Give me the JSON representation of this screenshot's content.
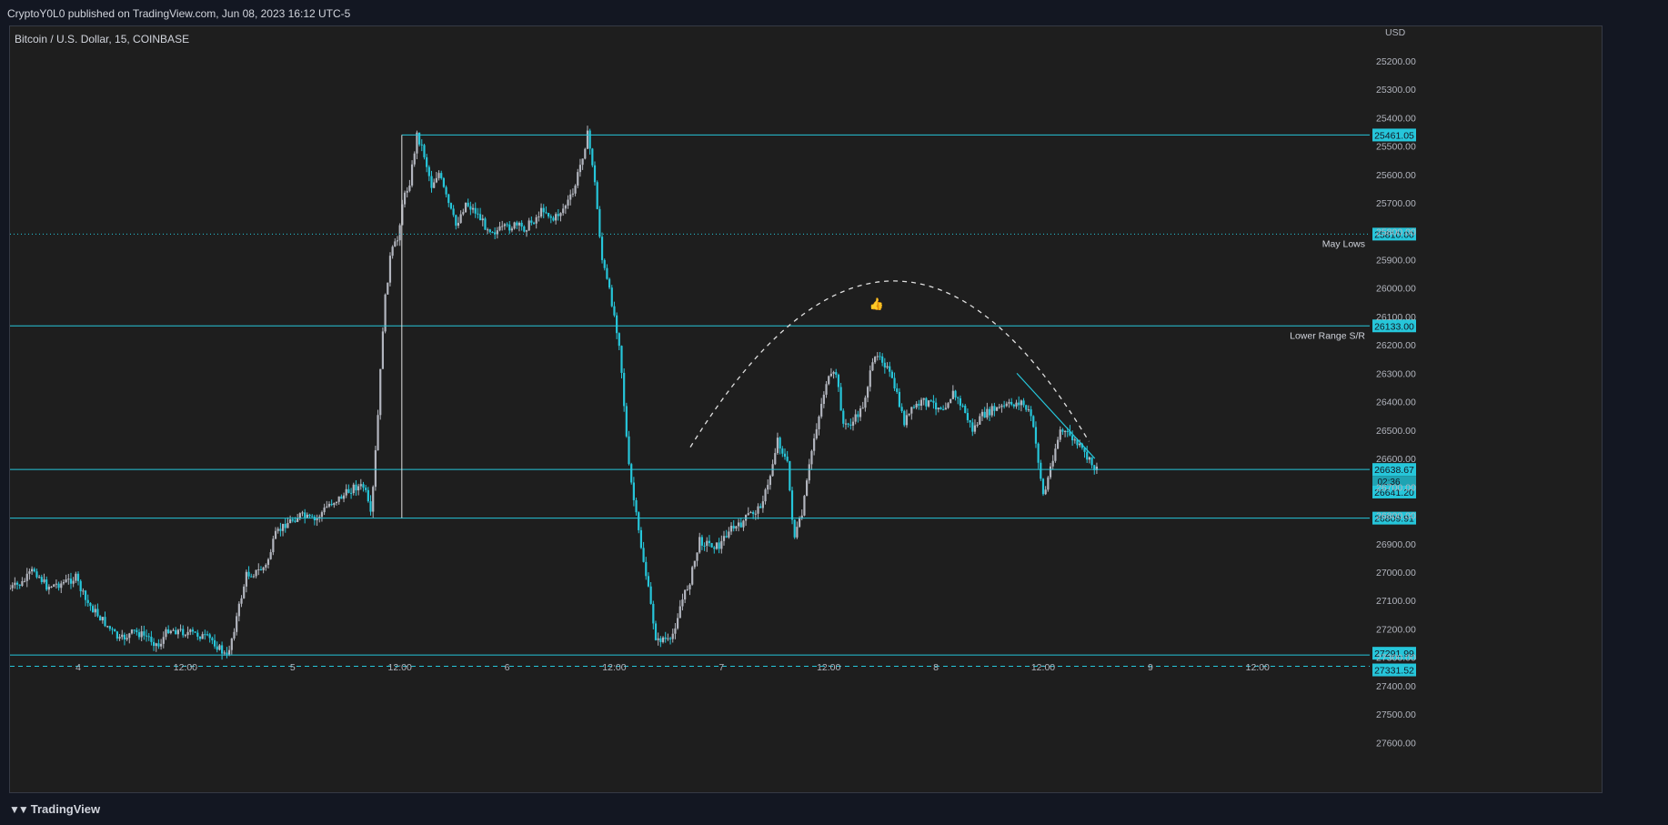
{
  "publisher_line": "CryptoY0L0 published on TradingView.com, Jun 08, 2023 16:12 UTC-5",
  "symbol_line": "Bitcoin / U.S. Dollar, 15, COINBASE",
  "brand": {
    "name": "TradingView",
    "logo_icon": "tradingview-logo-icon"
  },
  "colors": {
    "background": "#1e1e1e",
    "outer": "#131722",
    "level_line": "#26c6da",
    "up_candle": "#b2b5be",
    "down_candle": "#26c6da",
    "axis_text": "#b2b5be"
  },
  "chart_data": {
    "type": "candlestick",
    "title": "Bitcoin / U.S. Dollar, 15, COINBASE",
    "currency_label": "USD",
    "y_axis": {
      "inverted": true,
      "range": [
        25085,
        27775
      ],
      "ticks": [
        25200,
        25300,
        25400,
        25500,
        25600,
        25700,
        25800,
        25900,
        26000,
        26100,
        26200,
        26300,
        26400,
        26500,
        26600,
        26700,
        26800,
        26900,
        27000,
        27100,
        27200,
        27300,
        27400,
        27500,
        27600
      ],
      "tick_labels": [
        "25200.00",
        "25300.00",
        "25400.00",
        "25500.00",
        "25600.00",
        "25700.00",
        "25800.00",
        "25900.00",
        "26000.00",
        "26100.00",
        "26200.00",
        "26300.00",
        "26400.00",
        "26500.00",
        "26600.00",
        "26700.00",
        "26800.00",
        "26900.00",
        "27000.00",
        "27100.00",
        "27200.00",
        "27300.00",
        "27400.00",
        "27500.00",
        "27600.00"
      ]
    },
    "x_axis": {
      "range": [
        0,
        139.5
      ],
      "ticks": [
        {
          "t": 7,
          "label": "4"
        },
        {
          "t": 18,
          "label": "12:00"
        },
        {
          "t": 29,
          "label": "5"
        },
        {
          "t": 40,
          "label": "12:00"
        },
        {
          "t": 51,
          "label": "6"
        },
        {
          "t": 62,
          "label": "12:00"
        },
        {
          "t": 73,
          "label": "7"
        },
        {
          "t": 84,
          "label": "12:00"
        },
        {
          "t": 95,
          "label": "8"
        },
        {
          "t": 106,
          "label": "12:00"
        },
        {
          "t": 117,
          "label": "9"
        },
        {
          "t": 128,
          "label": "12:00"
        }
      ],
      "unit_note": "t in hours since Jun 4 00:00 minus offset"
    },
    "price_path": [
      [
        0,
        27060
      ],
      [
        1.5,
        27040
      ],
      [
        2.7,
        26990
      ],
      [
        4,
        27050
      ],
      [
        5.5,
        27040
      ],
      [
        7,
        27020
      ],
      [
        8,
        27100
      ],
      [
        9.5,
        27160
      ],
      [
        10.5,
        27200
      ],
      [
        11.5,
        27240
      ],
      [
        13,
        27210
      ],
      [
        14.5,
        27230
      ],
      [
        15.5,
        27260
      ],
      [
        16.5,
        27200
      ],
      [
        18,
        27210
      ],
      [
        19.5,
        27220
      ],
      [
        21,
        27240
      ],
      [
        22.5,
        27300
      ],
      [
        23.3,
        27190
      ],
      [
        24.5,
        27010
      ],
      [
        25.5,
        27000
      ],
      [
        26.5,
        26980
      ],
      [
        27.5,
        26870
      ],
      [
        28.5,
        26830
      ],
      [
        30,
        26800
      ],
      [
        31.5,
        26820
      ],
      [
        33,
        26760
      ],
      [
        34.5,
        26730
      ],
      [
        35.5,
        26700
      ],
      [
        36.6,
        26700
      ],
      [
        37.3,
        26810
      ],
      [
        38,
        26450
      ],
      [
        38.6,
        26080
      ],
      [
        39.3,
        25880
      ],
      [
        40,
        25830
      ],
      [
        40.5,
        25700
      ],
      [
        41.3,
        25620
      ],
      [
        42,
        25460
      ],
      [
        42.6,
        25510
      ],
      [
        43.5,
        25640
      ],
      [
        44.2,
        25590
      ],
      [
        45,
        25680
      ],
      [
        46,
        25780
      ],
      [
        47,
        25700
      ],
      [
        48,
        25730
      ],
      [
        49,
        25780
      ],
      [
        50,
        25800
      ],
      [
        51,
        25790
      ],
      [
        52,
        25780
      ],
      [
        53,
        25790
      ],
      [
        54,
        25760
      ],
      [
        55,
        25720
      ],
      [
        56,
        25760
      ],
      [
        57,
        25720
      ],
      [
        58,
        25670
      ],
      [
        58.8,
        25560
      ],
      [
        59.5,
        25460
      ],
      [
        60.1,
        25580
      ],
      [
        61,
        25900
      ],
      [
        62,
        26050
      ],
      [
        62.8,
        26200
      ],
      [
        63.7,
        26620
      ],
      [
        64.7,
        26850
      ],
      [
        65.5,
        27010
      ],
      [
        66.6,
        27250
      ],
      [
        67.2,
        27230
      ],
      [
        68,
        27250
      ],
      [
        69,
        27120
      ],
      [
        70,
        27030
      ],
      [
        71,
        26890
      ],
      [
        72,
        26900
      ],
      [
        73,
        26910
      ],
      [
        74,
        26850
      ],
      [
        75,
        26840
      ],
      [
        76,
        26800
      ],
      [
        77,
        26780
      ],
      [
        78,
        26700
      ],
      [
        79,
        26530
      ],
      [
        80,
        26620
      ],
      [
        80.7,
        26880
      ],
      [
        81.5,
        26800
      ],
      [
        82.6,
        26550
      ],
      [
        83.3,
        26440
      ],
      [
        84,
        26330
      ],
      [
        85,
        26300
      ],
      [
        85.8,
        26490
      ],
      [
        86.8,
        26470
      ],
      [
        87.7,
        26420
      ],
      [
        88.6,
        26290
      ],
      [
        89.3,
        26220
      ],
      [
        90.2,
        26280
      ],
      [
        91,
        26350
      ],
      [
        92,
        26470
      ],
      [
        93,
        26420
      ],
      [
        94,
        26400
      ],
      [
        95,
        26410
      ],
      [
        96,
        26420
      ],
      [
        97,
        26370
      ],
      [
        98,
        26420
      ],
      [
        99,
        26500
      ],
      [
        100,
        26450
      ],
      [
        101,
        26430
      ],
      [
        102,
        26420
      ],
      [
        103,
        26410
      ],
      [
        104,
        26400
      ],
      [
        105,
        26450
      ],
      [
        105.6,
        26570
      ],
      [
        106.3,
        26740
      ],
      [
        107.2,
        26600
      ],
      [
        108,
        26500
      ],
      [
        109,
        26520
      ],
      [
        110,
        26560
      ],
      [
        111,
        26610
      ],
      [
        111.7,
        26640
      ]
    ],
    "levels": [
      {
        "price": 25461.05,
        "label_value": "25461.05",
        "style": "solid",
        "from_t": 40.2
      },
      {
        "price": 25810.0,
        "label_value": "25810.00",
        "style": "dotted",
        "from_t": 0,
        "name": "May Lows"
      },
      {
        "price": 26133.0,
        "label_value": "26133.00",
        "style": "solid",
        "from_t": 0,
        "name": "Lower Range S/R"
      },
      {
        "price": 26638.67,
        "label_value": "26638.67",
        "style": "solid",
        "from_t": 0,
        "countdown": "02:36"
      },
      {
        "price": 26641.2,
        "label_value": "26641.20",
        "style": "none",
        "from_t": 0
      },
      {
        "price": 26809.91,
        "label_value": "26809.91",
        "style": "solid",
        "from_t": 0
      },
      {
        "price": 27291.99,
        "label_value": "27291.99",
        "style": "solid",
        "from_t": 0
      },
      {
        "price": 27331.52,
        "label_value": "27331.52",
        "style": "dashed",
        "from_t": 0
      }
    ],
    "annotations": [
      {
        "type": "arc",
        "style": "dashed",
        "from": [
          69.8,
          26560
        ],
        "peak": [
          90.5,
          25975
        ],
        "to": [
          110.7,
          26540
        ]
      },
      {
        "type": "trendline",
        "from": [
          103.3,
          26300
        ],
        "to": [
          111.3,
          26600
        ]
      },
      {
        "type": "thumbs-up-icon",
        "at": [
          88.9,
          26070
        ]
      },
      {
        "type": "box-edge",
        "from": [
          40.2,
          25461
        ],
        "to": [
          40.2,
          26809
        ]
      }
    ]
  }
}
